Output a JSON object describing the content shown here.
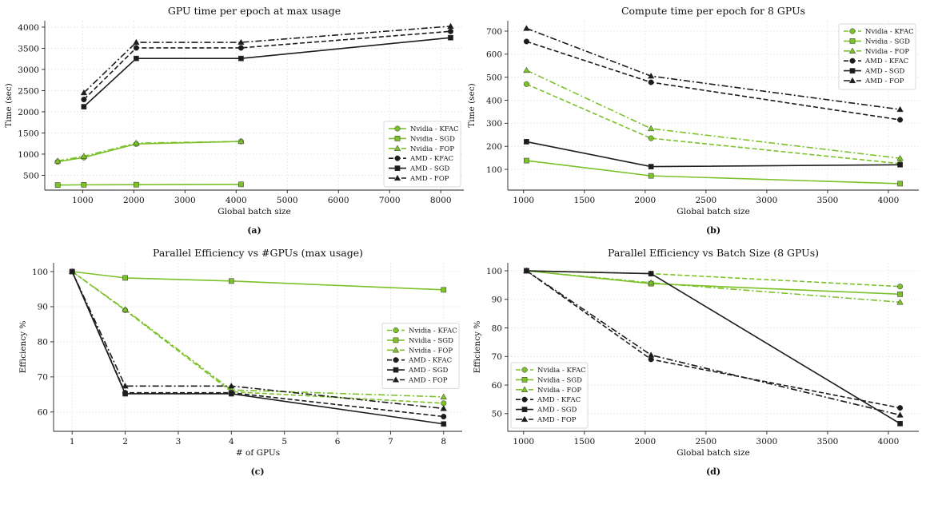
{
  "colors": {
    "nvidia": "#7cc129",
    "amd": "#1c1c1c"
  },
  "chart_data": [
    {
      "type": "line",
      "caption": "(a)",
      "title": "GPU time per epoch at max usage",
      "xlabel": "Global batch size",
      "ylabel": "Time (sec)",
      "xlim": [
        260,
        8450
      ],
      "ylim": [
        150,
        4150
      ],
      "xticks": [
        1000,
        2000,
        3000,
        4000,
        5000,
        6000,
        7000,
        8000
      ],
      "yticks": [
        500,
        1000,
        1500,
        2000,
        2500,
        3000,
        3500,
        4000
      ],
      "legend_position": "lower-right",
      "series": [
        {
          "name": "Nvidia - KFAC",
          "vendor": "nvidia",
          "marker": "circle",
          "dash": "solid",
          "x": [
            512,
            1024,
            2048,
            4096
          ],
          "y": [
            820,
            920,
            1240,
            1300
          ]
        },
        {
          "name": "Nvidia - SGD",
          "vendor": "nvidia",
          "marker": "square",
          "dash": "solid",
          "x": [
            512,
            1024,
            2048,
            4096
          ],
          "y": [
            270,
            275,
            278,
            285
          ]
        },
        {
          "name": "Nvidia - FOP",
          "vendor": "nvidia",
          "marker": "triangle",
          "dash": "dashdot",
          "x": [
            512,
            1024,
            2048,
            4096
          ],
          "y": [
            840,
            950,
            1260,
            1300
          ]
        },
        {
          "name": "AMD - KFAC",
          "vendor": "amd",
          "marker": "circle",
          "dash": "dashed",
          "x": [
            1024,
            2048,
            4096,
            8192
          ],
          "y": [
            2290,
            3510,
            3510,
            3900
          ]
        },
        {
          "name": "AMD - SGD",
          "vendor": "amd",
          "marker": "square",
          "dash": "solid",
          "x": [
            1024,
            2048,
            4096,
            8192
          ],
          "y": [
            2120,
            3260,
            3260,
            3750
          ]
        },
        {
          "name": "AMD - FOP",
          "vendor": "amd",
          "marker": "triangle",
          "dash": "dashdot",
          "x": [
            1024,
            2048,
            4096,
            8192
          ],
          "y": [
            2450,
            3640,
            3640,
            4020
          ]
        }
      ]
    },
    {
      "type": "line",
      "caption": "(b)",
      "title": "Compute time per epoch for 8 GPUs",
      "xlabel": "Global batch size",
      "ylabel": "Time (sec)",
      "xlim": [
        870,
        4250
      ],
      "ylim": [
        10,
        745
      ],
      "xticks": [
        1000,
        1500,
        2000,
        2500,
        3000,
        3500,
        4000
      ],
      "yticks": [
        100,
        200,
        300,
        400,
        500,
        600,
        700
      ],
      "legend_position": "upper-right",
      "series": [
        {
          "name": "Nvidia - KFAC",
          "vendor": "nvidia",
          "marker": "circle",
          "dash": "dashed",
          "x": [
            1024,
            2048,
            4096
          ],
          "y": [
            470,
            235,
            125
          ]
        },
        {
          "name": "Nvidia - SGD",
          "vendor": "nvidia",
          "marker": "square",
          "dash": "solid",
          "x": [
            1024,
            2048,
            4096
          ],
          "y": [
            138,
            72,
            38
          ]
        },
        {
          "name": "Nvidia - FOP",
          "vendor": "nvidia",
          "marker": "triangle",
          "dash": "dashdot",
          "x": [
            1024,
            2048,
            4096
          ],
          "y": [
            530,
            277,
            148
          ]
        },
        {
          "name": "AMD - KFAC",
          "vendor": "amd",
          "marker": "circle",
          "dash": "dashed",
          "x": [
            1024,
            2048,
            4096
          ],
          "y": [
            655,
            478,
            315
          ]
        },
        {
          "name": "AMD - SGD",
          "vendor": "amd",
          "marker": "square",
          "dash": "solid",
          "x": [
            1024,
            2048,
            4096
          ],
          "y": [
            220,
            112,
            120
          ]
        },
        {
          "name": "AMD - FOP",
          "vendor": "amd",
          "marker": "triangle",
          "dash": "dashdot",
          "x": [
            1024,
            2048,
            4096
          ],
          "y": [
            712,
            505,
            360
          ]
        }
      ]
    },
    {
      "type": "line",
      "caption": "(c)",
      "title": "Parallel Efficiency vs #GPUs (max usage)",
      "xlabel": "# of GPUs",
      "ylabel": "Efficiency %",
      "xlim": [
        0.65,
        8.35
      ],
      "ylim": [
        54.5,
        102.5
      ],
      "xticks": [
        1,
        2,
        3,
        4,
        5,
        6,
        7,
        8
      ],
      "yticks": [
        60,
        70,
        80,
        90,
        100
      ],
      "legend_position": "center-right",
      "series": [
        {
          "name": "Nvidia - KFAC",
          "vendor": "nvidia",
          "marker": "circle",
          "dash": "dashed",
          "x": [
            1,
            2,
            4,
            8
          ],
          "y": [
            100,
            89,
            65.8,
            62.5
          ]
        },
        {
          "name": "Nvidia - SGD",
          "vendor": "nvidia",
          "marker": "square",
          "dash": "solid",
          "x": [
            1,
            2,
            4,
            8
          ],
          "y": [
            100,
            98.2,
            97.3,
            94.8
          ]
        },
        {
          "name": "Nvidia - FOP",
          "vendor": "nvidia",
          "marker": "triangle",
          "dash": "dashdot",
          "x": [
            1,
            2,
            4,
            8
          ],
          "y": [
            100,
            89.2,
            66.3,
            64.3
          ]
        },
        {
          "name": "AMD - KFAC",
          "vendor": "amd",
          "marker": "circle",
          "dash": "dashed",
          "x": [
            1,
            2,
            4,
            8
          ],
          "y": [
            100,
            65.5,
            65.5,
            58.7
          ]
        },
        {
          "name": "AMD - SGD",
          "vendor": "amd",
          "marker": "square",
          "dash": "solid",
          "x": [
            1,
            2,
            4,
            8
          ],
          "y": [
            100,
            65.2,
            65.2,
            56.6
          ]
        },
        {
          "name": "AMD - FOP",
          "vendor": "amd",
          "marker": "triangle",
          "dash": "dashdot",
          "x": [
            1,
            2,
            4,
            8
          ],
          "y": [
            100,
            67.4,
            67.4,
            61
          ]
        }
      ]
    },
    {
      "type": "line",
      "caption": "(d)",
      "title": "Parallel Efficiency vs Batch Size (8 GPUs)",
      "xlabel": "Global batch size",
      "ylabel": "Efficiency %",
      "xlim": [
        870,
        4250
      ],
      "ylim": [
        43.8,
        102.8
      ],
      "xticks": [
        1000,
        1500,
        2000,
        2500,
        3000,
        3500,
        4000
      ],
      "yticks": [
        50,
        60,
        70,
        80,
        90,
        100
      ],
      "legend_position": "lower-left",
      "series": [
        {
          "name": "Nvidia - KFAC",
          "vendor": "nvidia",
          "marker": "circle",
          "dash": "dashed",
          "x": [
            1024,
            2048,
            4096
          ],
          "y": [
            100,
            99,
            94.5
          ]
        },
        {
          "name": "Nvidia - SGD",
          "vendor": "nvidia",
          "marker": "square",
          "dash": "solid",
          "x": [
            1024,
            2048,
            4096
          ],
          "y": [
            100,
            95.5,
            91.8
          ]
        },
        {
          "name": "Nvidia - FOP",
          "vendor": "nvidia",
          "marker": "triangle",
          "dash": "dashdot",
          "x": [
            1024,
            2048,
            4096
          ],
          "y": [
            100,
            95.8,
            89
          ]
        },
        {
          "name": "AMD - KFAC",
          "vendor": "amd",
          "marker": "circle",
          "dash": "dashed",
          "x": [
            1024,
            2048,
            4096
          ],
          "y": [
            100,
            69,
            52
          ]
        },
        {
          "name": "AMD - SGD",
          "vendor": "amd",
          "marker": "square",
          "dash": "solid",
          "x": [
            1024,
            2048,
            4096
          ],
          "y": [
            100,
            99,
            46.5
          ]
        },
        {
          "name": "AMD - FOP",
          "vendor": "amd",
          "marker": "triangle",
          "dash": "dashdot",
          "x": [
            1024,
            2048,
            4096
          ],
          "y": [
            100,
            70.5,
            49.5
          ]
        }
      ]
    }
  ]
}
